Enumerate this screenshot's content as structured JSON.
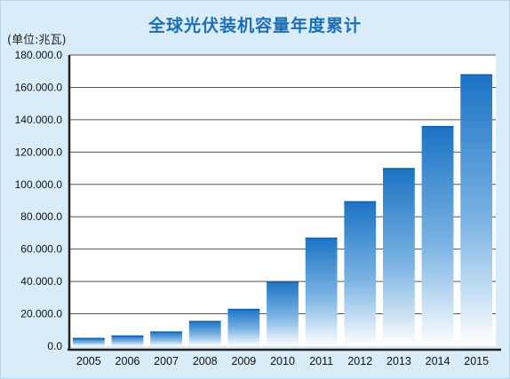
{
  "page": {
    "title": "全球光伏装机容量年度累计",
    "unit_label": "(单位:兆瓦)"
  },
  "chart_data": {
    "type": "bar",
    "title": "全球光伏装机容量年度累计",
    "ylabel": "(单位:兆瓦)",
    "xlabel": "",
    "categories": [
      "2005",
      "2006",
      "2007",
      "2008",
      "2009",
      "2010",
      "2011",
      "2012",
      "2013",
      "2014",
      "2015"
    ],
    "values": [
      5000,
      6500,
      9000,
      15500,
      23000,
      40000,
      67000,
      89500,
      110000,
      136000,
      168000
    ],
    "yticks": [
      0,
      20000,
      40000,
      60000,
      80000,
      100000,
      120000,
      140000,
      160000,
      180000
    ],
    "ytick_labels": [
      "0.0",
      "20.000.0",
      "40.000.0",
      "60.000.0",
      "80.000.0",
      "100.000.0",
      "120.000.0",
      "140.000.0",
      "160.000.0",
      "180.000.0"
    ],
    "ylim": [
      0,
      180000
    ],
    "grid": true,
    "legend": "none",
    "colors": {
      "bar_top": "#1b73c4",
      "bar_bottom": "#ffffff",
      "background": "#d8ecf9",
      "grid": "#555555"
    }
  }
}
